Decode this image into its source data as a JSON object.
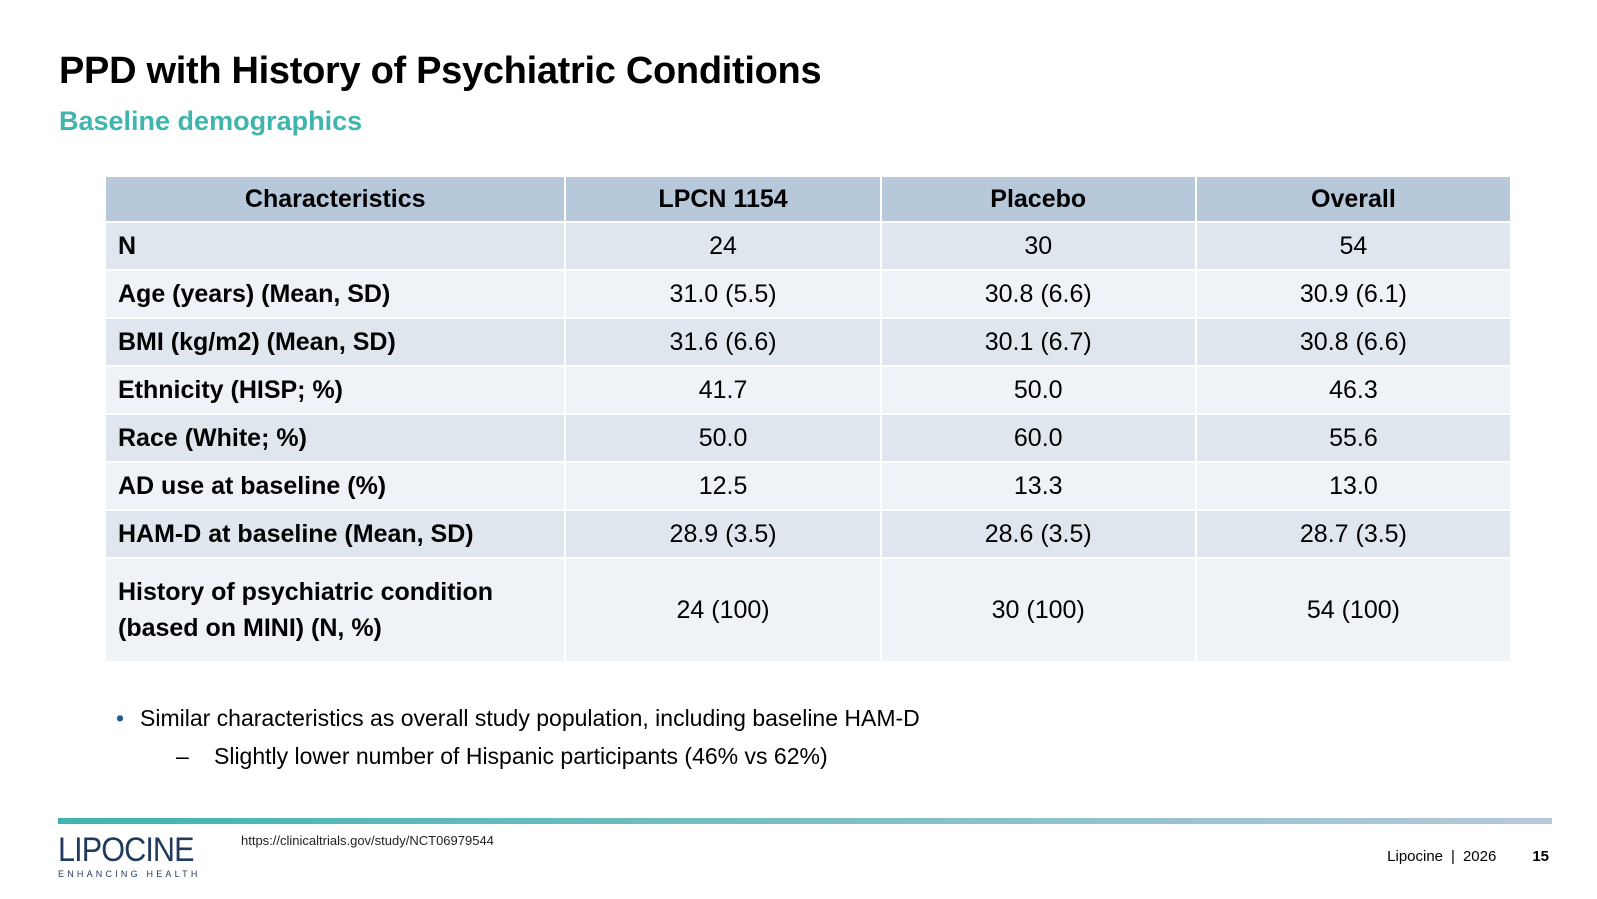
{
  "slide": {
    "title": "PPD with History of Psychiatric Conditions",
    "subtitle": "Baseline demographics"
  },
  "table": {
    "headers": [
      "Characteristics",
      "LPCN 1154",
      "Placebo",
      "Overall"
    ],
    "rows": [
      [
        "N",
        "24",
        "30",
        "54"
      ],
      [
        "Age (years) (Mean, SD)",
        "31.0 (5.5)",
        "30.8 (6.6)",
        "30.9 (6.1)"
      ],
      [
        "BMI (kg/m2) (Mean, SD)",
        "31.6 (6.6)",
        "30.1 (6.7)",
        "30.8 (6.6)"
      ],
      [
        "Ethnicity (HISP; %)",
        "41.7",
        "50.0",
        "46.3"
      ],
      [
        "Race (White; %)",
        "50.0",
        "60.0",
        "55.6"
      ],
      [
        "AD use at baseline (%)",
        "12.5",
        "13.3",
        "13.0"
      ],
      [
        "HAM-D at baseline (Mean, SD)",
        "28.9 (3.5)",
        "28.6 (3.5)",
        "28.7 (3.5)"
      ],
      [
        "History of psychiatric condition (based on MINI) (N, %)",
        "24 (100)",
        "30 (100)",
        "54 (100)"
      ]
    ]
  },
  "notes": {
    "bullet": "Similar characteristics as overall study population, including baseline HAM-D",
    "sub_bullet": "Slightly lower number of Hispanic participants (46% vs 62%)"
  },
  "footer": {
    "logo_text": "LIPOCINE",
    "logo_tagline": "ENHANCING HEALTH",
    "source_url": "https://clinicaltrials.gov/study/NCT06979544",
    "company": "Lipocine",
    "year": "2026",
    "page_number": "15"
  },
  "colors": {
    "accent_teal": "#3fb5ad",
    "header_blue": "#b6c8da",
    "row_dark": "#dfe6ee",
    "row_light": "#eff2f6",
    "logo_navy": "#1f3a5c"
  }
}
